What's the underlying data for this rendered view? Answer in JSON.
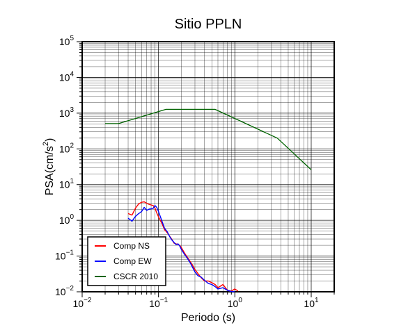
{
  "chart_data": {
    "type": "line",
    "title": "Sitio PPLN",
    "xlabel": "Periodo (s)",
    "ylabel_main": "PSA(cm/s",
    "ylabel_sup": "2",
    "ylabel_tail": ")",
    "xscale": "log",
    "yscale": "log",
    "xlim": [
      0.01,
      20
    ],
    "ylim": [
      0.01,
      100000
    ],
    "grid": true,
    "legend_position": "bottom-left",
    "x_ticks": [
      {
        "base": "10",
        "exp": "−2",
        "value": 0.01
      },
      {
        "base": "10",
        "exp": "−1",
        "value": 0.1
      },
      {
        "base": "10",
        "exp": "0",
        "value": 1
      },
      {
        "base": "10",
        "exp": "1",
        "value": 10
      }
    ],
    "y_ticks": [
      {
        "base": "10",
        "exp": "−2",
        "value": 0.01
      },
      {
        "base": "10",
        "exp": "−1",
        "value": 0.1
      },
      {
        "base": "10",
        "exp": "0",
        "value": 1
      },
      {
        "base": "10",
        "exp": "1",
        "value": 10
      },
      {
        "base": "10",
        "exp": "2",
        "value": 100
      },
      {
        "base": "10",
        "exp": "3",
        "value": 1000
      },
      {
        "base": "10",
        "exp": "4",
        "value": 10000
      },
      {
        "base": "10",
        "exp": "5",
        "value": 100000
      }
    ],
    "series": [
      {
        "name": "Comp NS",
        "color": "#ff0000",
        "x": [
          0.04,
          0.045,
          0.05,
          0.055,
          0.06,
          0.065,
          0.07,
          0.075,
          0.08,
          0.085,
          0.09,
          0.095,
          0.1,
          0.11,
          0.12,
          0.13,
          0.14,
          0.15,
          0.16,
          0.17,
          0.18,
          0.19,
          0.2,
          0.22,
          0.24,
          0.26,
          0.28,
          0.3,
          0.33,
          0.36,
          0.4,
          0.45,
          0.5,
          0.55,
          0.6,
          0.7,
          0.8,
          0.9,
          1.0,
          1.1
        ],
        "y": [
          1.55,
          1.4,
          2.2,
          2.9,
          3.2,
          3.3,
          3.0,
          2.8,
          2.7,
          2.6,
          2.2,
          1.6,
          1.25,
          0.85,
          0.55,
          0.45,
          0.36,
          0.29,
          0.23,
          0.22,
          0.21,
          0.2,
          0.17,
          0.12,
          0.09,
          0.07,
          0.055,
          0.042,
          0.032,
          0.025,
          0.02,
          0.02,
          0.018,
          0.016,
          0.013,
          0.016,
          0.011,
          0.0105,
          0.012,
          0.0105
        ]
      },
      {
        "name": "Comp EW",
        "color": "#0000ff",
        "x": [
          0.04,
          0.045,
          0.05,
          0.055,
          0.06,
          0.065,
          0.07,
          0.075,
          0.08,
          0.085,
          0.09,
          0.095,
          0.1,
          0.11,
          0.12,
          0.13,
          0.14,
          0.15,
          0.16,
          0.17,
          0.18,
          0.19,
          0.2,
          0.22,
          0.24,
          0.26,
          0.28,
          0.3,
          0.33,
          0.36,
          0.4,
          0.45,
          0.5,
          0.55,
          0.6,
          0.7,
          0.8,
          0.9,
          1.0
        ],
        "y": [
          1.15,
          0.95,
          1.3,
          1.55,
          1.75,
          2.3,
          1.9,
          2.05,
          2.1,
          2.15,
          2.6,
          2.3,
          1.75,
          1.0,
          0.6,
          0.48,
          0.35,
          0.28,
          0.24,
          0.21,
          0.22,
          0.19,
          0.15,
          0.11,
          0.085,
          0.065,
          0.048,
          0.036,
          0.028,
          0.026,
          0.021,
          0.017,
          0.016,
          0.014,
          0.012,
          0.013,
          0.011,
          0.0102,
          0.0101
        ]
      },
      {
        "name": "CSCR 2010",
        "color": "#006400",
        "x": [
          0.02,
          0.03,
          0.125,
          0.55,
          3.6,
          10
        ],
        "y": [
          510,
          510,
          1275,
          1275,
          200,
          26
        ]
      }
    ]
  }
}
